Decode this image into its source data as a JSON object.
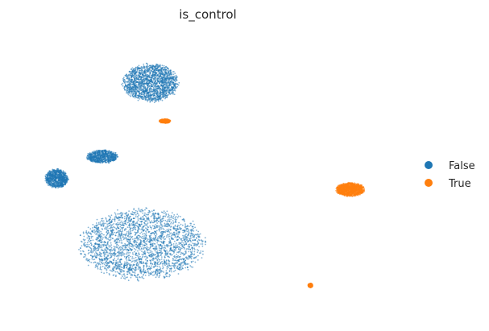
{
  "chart_data": {
    "type": "scatter",
    "title": "is_control",
    "xlabel": "",
    "ylabel": "",
    "axes_visible": false,
    "grid": false,
    "legend_position": "right",
    "series": [
      {
        "name": "False",
        "color": "#1f77b4",
        "clusters": [
          {
            "name": "large-lower",
            "center": [
              4.0,
              2.4
            ],
            "spread": [
              2.2,
              1.3
            ],
            "density": 1.0
          },
          {
            "name": "upper",
            "center": [
              4.3,
              8.3
            ],
            "spread": [
              1.0,
              0.7
            ],
            "density": 0.7
          },
          {
            "name": "left-arm",
            "center": [
              1.0,
              4.8
            ],
            "spread": [
              0.4,
              0.35
            ],
            "density": 0.35
          },
          {
            "name": "bridge",
            "center": [
              2.6,
              5.6
            ],
            "spread": [
              0.55,
              0.25
            ],
            "density": 0.3
          }
        ]
      },
      {
        "name": "True",
        "color": "#ff7f0e",
        "clusters": [
          {
            "name": "right-island",
            "center": [
              11.3,
              4.4
            ],
            "spread": [
              0.5,
              0.25
            ],
            "density": 0.6
          },
          {
            "name": "small-island",
            "center": [
              9.9,
              0.9
            ],
            "spread": [
              0.08,
              0.08
            ],
            "density": 0.15
          },
          {
            "name": "upper-notch",
            "center": [
              4.8,
              6.9
            ],
            "spread": [
              0.2,
              0.08
            ],
            "density": 0.15
          }
        ]
      }
    ],
    "legend": [
      "False",
      "True"
    ]
  }
}
